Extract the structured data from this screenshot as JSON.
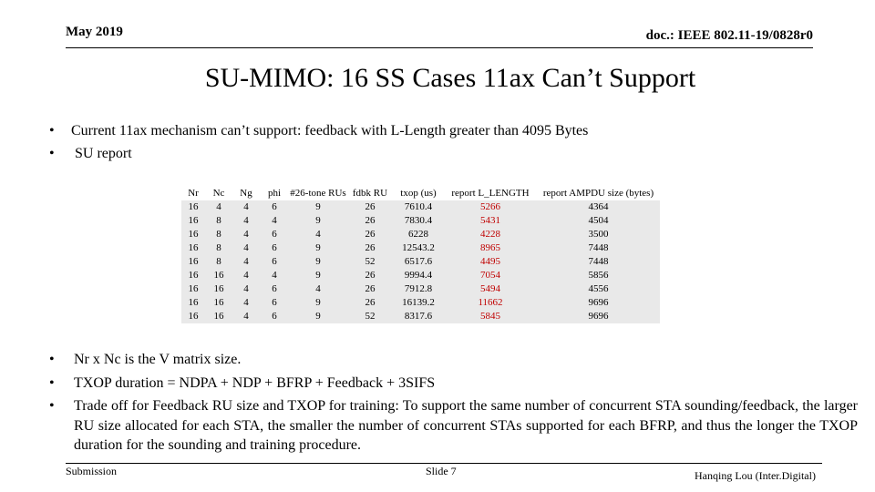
{
  "header": {
    "date": "May 2019",
    "doc_id": "doc.: IEEE 802.11-19/0828r0"
  },
  "title": "SU-MIMO: 16 SS Cases 11ax Can’t Support",
  "bullets_top": [
    {
      "marker": "•",
      "text": "Current 11ax mechanism can’t support: feedback with L-Length greater than 4095 Bytes"
    },
    {
      "marker": "•",
      "text": "SU report"
    }
  ],
  "table": {
    "headers": [
      "Nr",
      "Nc",
      "Ng",
      "phi",
      "#26-tone RUs",
      "fdbk RU",
      "txop (us)",
      "report L_LENGTH",
      "report AMPDU size (bytes)"
    ],
    "rows": [
      [
        "16",
        "4",
        "4",
        "6",
        "9",
        "26",
        "7610.4",
        "5266",
        "4364"
      ],
      [
        "16",
        "8",
        "4",
        "4",
        "9",
        "26",
        "7830.4",
        "5431",
        "4504"
      ],
      [
        "16",
        "8",
        "4",
        "6",
        "4",
        "26",
        "6228",
        "4228",
        "3500"
      ],
      [
        "16",
        "8",
        "4",
        "6",
        "9",
        "26",
        "12543.2",
        "8965",
        "7448"
      ],
      [
        "16",
        "8",
        "4",
        "6",
        "9",
        "52",
        "6517.6",
        "4495",
        "7448"
      ],
      [
        "16",
        "16",
        "4",
        "4",
        "9",
        "26",
        "9994.4",
        "7054",
        "5856"
      ],
      [
        "16",
        "16",
        "4",
        "6",
        "4",
        "26",
        "7912.8",
        "5494",
        "4556"
      ],
      [
        "16",
        "16",
        "4",
        "6",
        "9",
        "26",
        "16139.2",
        "11662",
        "9696"
      ],
      [
        "16",
        "16",
        "4",
        "6",
        "9",
        "52",
        "8317.6",
        "5845",
        "9696"
      ]
    ],
    "highlight_color": "#c00000",
    "cell_background": "#e9e9e9"
  },
  "bullets_bottom": [
    {
      "marker": "•",
      "text": "Nr x Nc is the V matrix size."
    },
    {
      "marker": "•",
      "text": "TXOP duration = NDPA + NDP + BFRP + Feedback + 3SIFS"
    },
    {
      "marker": "•",
      "text": "Trade off for Feedback RU size and TXOP for training: To support the same number of concurrent STA sounding/feedback, the larger RU size allocated for each STA, the smaller the number of concurrent STAs supported for each BFRP, and thus the longer the TXOP duration for the sounding and training procedure."
    }
  ],
  "footer": {
    "left": "Submission",
    "center": "Slide 7",
    "right": "Hanqing Lou (Inter.Digital)"
  }
}
